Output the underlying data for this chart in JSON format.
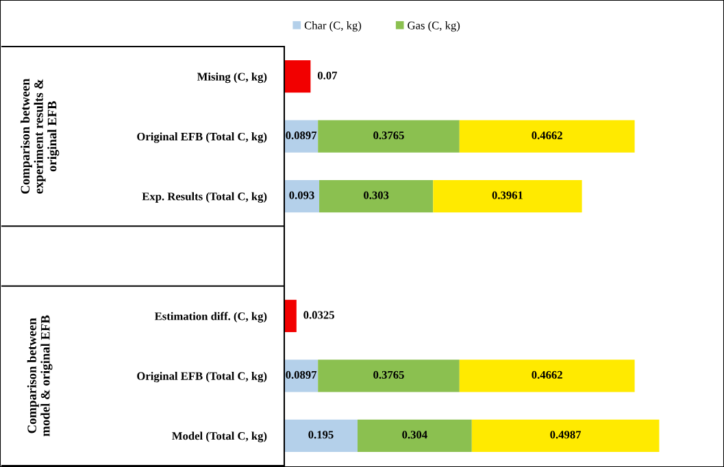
{
  "chart_data": {
    "type": "bar",
    "orientation": "horizontal",
    "stacked": true,
    "data_labels": true,
    "legend": "top",
    "grid": false,
    "categories": [
      "Mising (C, kg)",
      "Original EFB (Total C, kg)",
      "Exp. Results (Total C, kg)",
      null,
      "Estimation diff. (C, kg)",
      "Original EFB (Total C, kg)",
      "Model (Total C, kg)"
    ],
    "series": [
      {
        "name": "Char (C, kg)",
        "color": "#b4d0ea",
        "values": [
          null,
          0.0897,
          0.093,
          null,
          null,
          0.0897,
          0.195
        ]
      },
      {
        "name": "Gas (C, kg)",
        "color": "#8bc050",
        "values": [
          null,
          0.3765,
          0.303,
          null,
          null,
          0.3765,
          0.304
        ]
      },
      {
        "color": "#ffea00",
        "values": [
          null,
          0.4662,
          0.3961,
          null,
          null,
          0.4662,
          0.4987
        ]
      },
      {
        "color": "#f20000",
        "values": [
          0.07,
          null,
          null,
          null,
          0.0325,
          null,
          null
        ]
      }
    ],
    "annotations": [
      "Comparison between\nexperiment results &\noriginal EFB",
      "Comparison between\nmodel & original EFB"
    ]
  }
}
